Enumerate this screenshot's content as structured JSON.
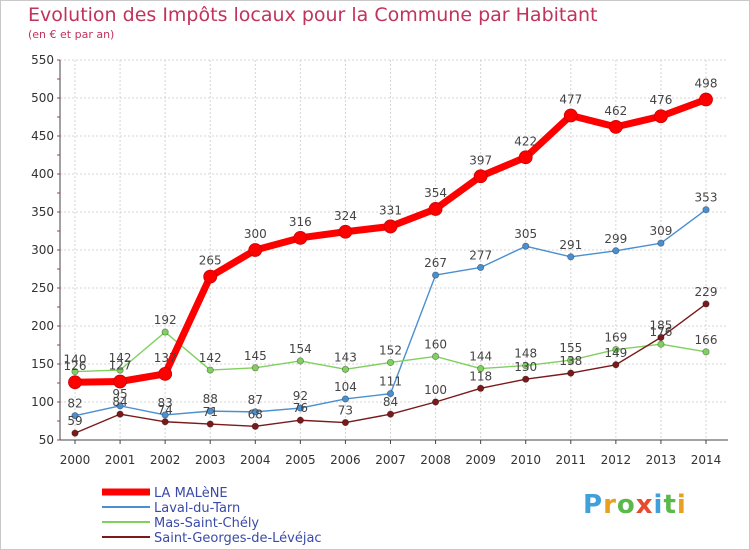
{
  "header": {
    "title": "Evolution des Impôts locaux pour la Commune par Habitant",
    "subtitle": "(en € et par an)"
  },
  "brand": {
    "letters": [
      "P",
      "r",
      "o",
      "x",
      "i",
      "t",
      "i"
    ],
    "colors": [
      "#3fa0da",
      "#e8a020",
      "#5ab94a",
      "#e84a30",
      "#3fa0da",
      "#5ab94a",
      "#e8a020"
    ]
  },
  "chart_data": {
    "type": "line",
    "x": [
      2000,
      2001,
      2002,
      2003,
      2004,
      2005,
      2006,
      2007,
      2008,
      2009,
      2010,
      2011,
      2012,
      2013,
      2014
    ],
    "ylim": [
      50,
      550
    ],
    "yticks": [
      50,
      100,
      150,
      200,
      250,
      300,
      350,
      400,
      450,
      500,
      550
    ],
    "grid": true,
    "legend_position": "bottom-left",
    "series": [
      {
        "name": "LA MALèNE",
        "color": "#ff0000",
        "highlight": true,
        "values": [
          126,
          127,
          137,
          265,
          300,
          316,
          324,
          331,
          354,
          397,
          422,
          477,
          462,
          476,
          498
        ],
        "labels": [
          "126",
          "127",
          "137",
          "265",
          "300",
          "316",
          "324",
          "331",
          "354",
          "397",
          "422",
          "477",
          "462",
          "476",
          "498"
        ]
      },
      {
        "name": "Laval-du-Tarn",
        "color": "#4a8fd0",
        "highlight": false,
        "values": [
          82,
          95,
          83,
          88,
          87,
          92,
          104,
          111,
          267,
          277,
          305,
          291,
          299,
          309,
          353
        ],
        "labels": [
          "82",
          "95",
          "83",
          "88",
          "87",
          "92",
          "104",
          "111",
          "267",
          "277",
          "305",
          "291",
          "299",
          "309",
          "353"
        ]
      },
      {
        "name": "Mas-Saint-Chély",
        "color": "#80d060",
        "highlight": false,
        "values": [
          140,
          142,
          192,
          142,
          145,
          154,
          143,
          152,
          160,
          144,
          148,
          155,
          169,
          176,
          166
        ],
        "labels": [
          "140",
          "142",
          "192",
          "142",
          "145",
          "154",
          "143",
          "152",
          "160",
          "144",
          "148",
          "155",
          "169",
          "176",
          "166"
        ]
      },
      {
        "name": "Saint-Georges-de-Lévéjac",
        "color": "#7a1a1a",
        "highlight": false,
        "values": [
          59,
          84,
          74,
          71,
          68,
          76,
          73,
          84,
          100,
          118,
          130,
          138,
          149,
          185,
          229
        ],
        "labels": [
          "59",
          "84",
          "74",
          "71",
          "68",
          "76",
          "73",
          "84",
          "100",
          "118",
          "130",
          "138",
          "149",
          "185",
          "229"
        ]
      }
    ]
  }
}
